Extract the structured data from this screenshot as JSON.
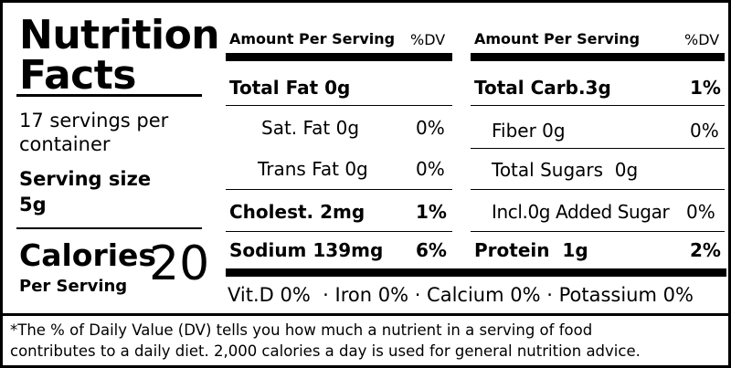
{
  "title_line1": "Nutrition",
  "title_line2": "Facts",
  "servings_line1": "17 servings per",
  "servings_line2": "container",
  "serving_size_label": "Serving size",
  "serving_size_value": "5g",
  "calories_label": "Calories",
  "calories_sub": "Per Serving",
  "calories_value": "20",
  "left_table": {
    "header": "Amount Per Serving",
    "dv_header": "%DV",
    "rows": [
      {
        "label": "Total Fat 0g",
        "dv": ""
      },
      {
        "label": "Sat. Fat 0g",
        "dv": "0%"
      },
      {
        "label": "Trans Fat 0g",
        "dv": "0%"
      },
      {
        "label": "Cholest. 2mg",
        "dv": "1%"
      },
      {
        "label": "Sodium 139mg",
        "dv": "6%"
      }
    ]
  },
  "right_table": {
    "header": "Amount Per Serving",
    "dv_header": "%DV",
    "rows": [
      {
        "label": "Total Carb.3g",
        "dv": "1%"
      },
      {
        "label": "Fiber 0g",
        "dv": "0%"
      },
      {
        "label": "Total Sugars  0g",
        "dv": ""
      },
      {
        "label": "Incl.0g Added Sugar",
        "dv": "0%"
      },
      {
        "label": "Protein  1g",
        "dv": "2%"
      }
    ]
  },
  "vitamins": "Vit.D 0%  · Iron 0% · Calcium 0% · Potassium 0%",
  "footnote_line1": "*The % of Daily Value (DV) tells you how much a nutrient in a serving of food",
  "footnote_line2": "contributes to a daily diet. 2,000 calories a day is used for general nutrition advice."
}
